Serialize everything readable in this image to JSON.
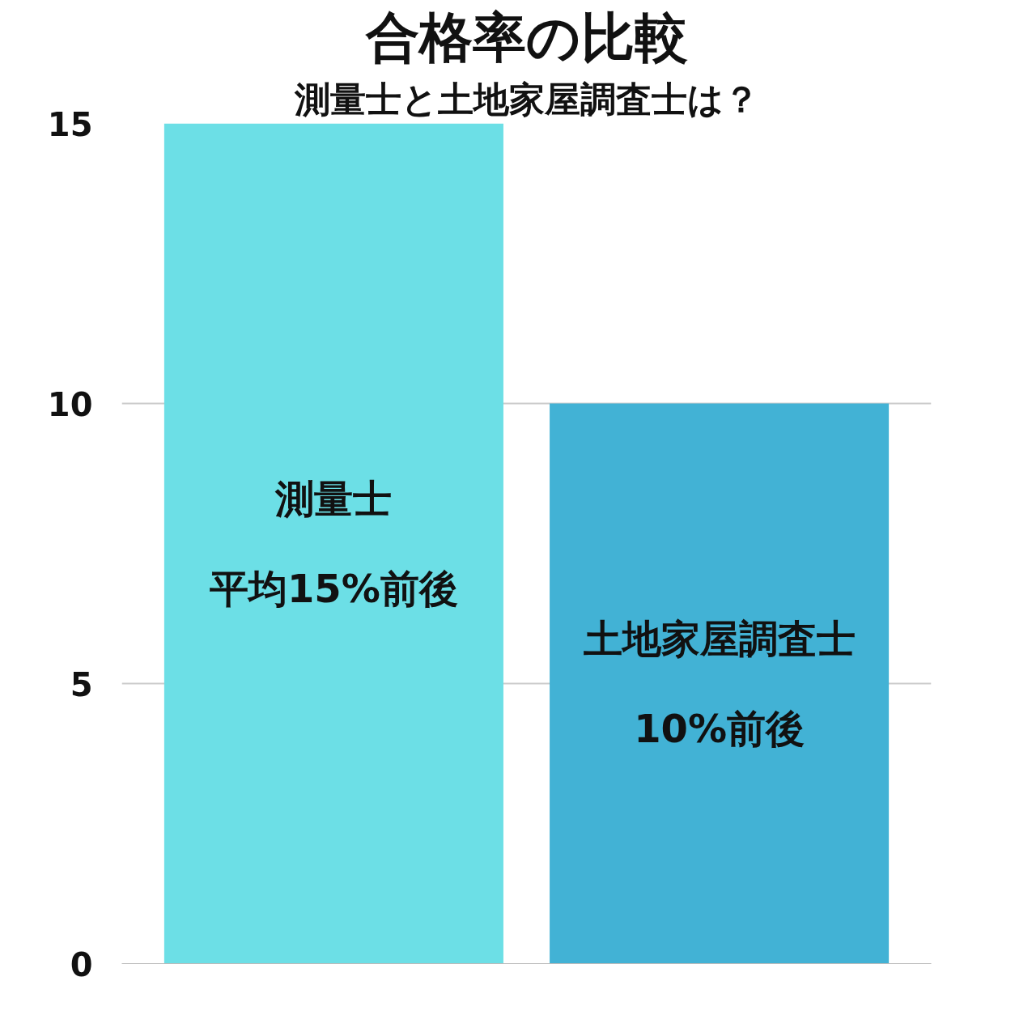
{
  "chart_data": {
    "type": "bar",
    "title": "合格率の比較",
    "subtitle": "測量士と土地家屋調査士は？",
    "categories": [
      "測量士",
      "土地家屋調査士"
    ],
    "values": [
      15,
      10
    ],
    "colors": [
      "#6cdfe6",
      "#42b2d5"
    ],
    "value_labels": [
      "平均15%前後",
      "10%前後"
    ],
    "ylim": [
      0,
      15
    ],
    "yticks": [
      0,
      5,
      10,
      15
    ],
    "grid": "y"
  }
}
